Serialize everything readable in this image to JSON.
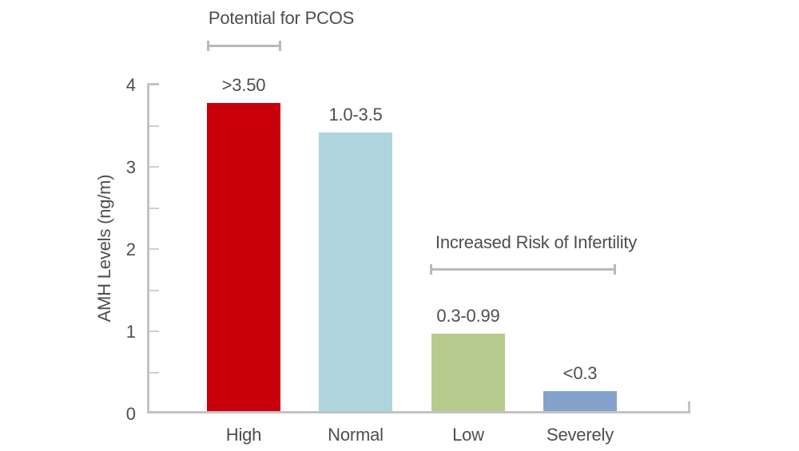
{
  "chart_data": {
    "type": "bar",
    "title": "",
    "xlabel": "",
    "ylabel": "AMH Levels (ng/m)",
    "ylim": [
      0,
      4
    ],
    "ytick_labels": [
      "0",
      "1",
      "2",
      "3",
      "4"
    ],
    "ytick_minor_step": 0.5,
    "grid": false,
    "legend": false,
    "categories": [
      "High",
      "Normal",
      "Low",
      "Severely"
    ],
    "bars": [
      {
        "category": "High",
        "value_label": ">3.50",
        "value": 3.78,
        "color": "#c80009"
      },
      {
        "category": "Normal",
        "value_label": "1.0-3.5",
        "value": 3.42,
        "color": "#aed4de"
      },
      {
        "category": "Low",
        "value_label": "0.3-0.99",
        "value": 0.97,
        "color": "#b8cb8e"
      },
      {
        "category": "Severely",
        "value_label": "<0.3",
        "value": 0.27,
        "color": "#84a2cb"
      }
    ],
    "annotations": [
      {
        "text": "Potential for PCOS",
        "spans": [
          "High"
        ]
      },
      {
        "text": "Increased Risk of Infertility",
        "spans": [
          "Low",
          "Severely"
        ]
      }
    ],
    "text_color": "#4e4e50",
    "axis_color": "#c3c3c3",
    "bracket_color": "#b9b9b9"
  }
}
